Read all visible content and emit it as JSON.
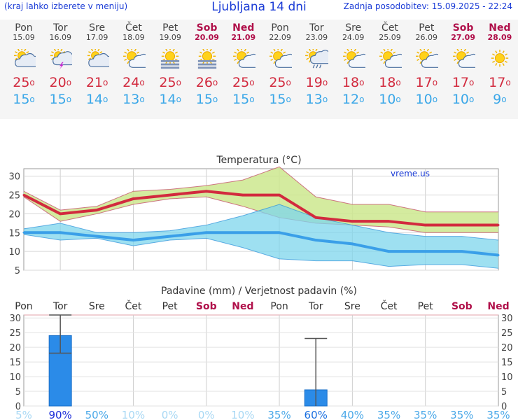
{
  "header": {
    "menu_hint": "(kraj lahko izberete v meniju)",
    "title": "Ljubljana 14 dni",
    "updated": "Zadnja posodobitev: 15.09.2025 - 22:24"
  },
  "colors": {
    "max": "#d22a3e",
    "min": "#3aa7e8",
    "weekend": "#b0104a",
    "bar": "#2b8be8"
  },
  "days": [
    {
      "name": "Pon",
      "date": "15.09",
      "icon": "cloudy-sun-icon",
      "tmax": "25",
      "tmin": "15",
      "weekend": false
    },
    {
      "name": "Tor",
      "date": "16.09",
      "icon": "storm-sun-icon",
      "tmax": "20",
      "tmin": "15",
      "weekend": false
    },
    {
      "name": "Sre",
      "date": "17.09",
      "icon": "cloudy-sun-icon",
      "tmax": "21",
      "tmin": "14",
      "weekend": false
    },
    {
      "name": "Čet",
      "date": "18.09",
      "icon": "sun-cloud-icon",
      "tmax": "24",
      "tmin": "13",
      "weekend": false
    },
    {
      "name": "Pet",
      "date": "19.09",
      "icon": "sun-fog-icon",
      "tmax": "25",
      "tmin": "14",
      "weekend": false
    },
    {
      "name": "Sob",
      "date": "20.09",
      "icon": "sun-fog-icon",
      "tmax": "26",
      "tmin": "15",
      "weekend": true
    },
    {
      "name": "Ned",
      "date": "21.09",
      "icon": "sun-cloud-icon",
      "tmax": "25",
      "tmin": "15",
      "weekend": true
    },
    {
      "name": "Pon",
      "date": "22.09",
      "icon": "sun-cloud-icon",
      "tmax": "25",
      "tmin": "15",
      "weekend": false
    },
    {
      "name": "Tor",
      "date": "23.09",
      "icon": "sun-rain-icon",
      "tmax": "19",
      "tmin": "13",
      "weekend": false
    },
    {
      "name": "Sre",
      "date": "24.09",
      "icon": "sun-cloud-icon",
      "tmax": "18",
      "tmin": "12",
      "weekend": false
    },
    {
      "name": "Čet",
      "date": "25.09",
      "icon": "sun-cloud-icon",
      "tmax": "18",
      "tmin": "10",
      "weekend": false
    },
    {
      "name": "Pet",
      "date": "26.09",
      "icon": "sun-cloud-icon",
      "tmax": "17",
      "tmin": "10",
      "weekend": false
    },
    {
      "name": "Sob",
      "date": "27.09",
      "icon": "sun-cloud-icon",
      "tmax": "17",
      "tmin": "10",
      "weekend": true
    },
    {
      "name": "Ned",
      "date": "28.09",
      "icon": "sun-icon",
      "tmax": "17",
      "tmin": "9",
      "weekend": true
    }
  ],
  "chart_data": [
    {
      "type": "line",
      "title": "Temperatura (°C)",
      "watermark": "vreme.us",
      "categories": [
        "Pon",
        "Tor",
        "Sre",
        "Čet",
        "Pet",
        "Sob",
        "Ned",
        "Pon",
        "Tor",
        "Sre",
        "Čet",
        "Pet",
        "Sob",
        "Ned"
      ],
      "ylim": [
        5,
        32
      ],
      "yticks": [
        5,
        10,
        15,
        20,
        25,
        30
      ],
      "grid": true,
      "series": [
        {
          "values": [
            25,
            20,
            21,
            24,
            25,
            26,
            25,
            25,
            19,
            18,
            18,
            17,
            17,
            17
          ]
        },
        {
          "values": [
            15,
            15,
            14,
            13,
            14,
            15,
            15,
            15,
            13,
            12,
            10,
            10,
            10,
            9
          ]
        }
      ],
      "bands": [
        {
          "upper": [
            26,
            21,
            22,
            26,
            26.5,
            27.5,
            29,
            32.5,
            24.5,
            22.5,
            22.5,
            20.5,
            20.5,
            20.5
          ],
          "lower": [
            24.5,
            18,
            20,
            22.5,
            24,
            24.5,
            22,
            19,
            17.5,
            17,
            16.5,
            15,
            15,
            15
          ]
        },
        {
          "upper": [
            16,
            17.5,
            15,
            15,
            15.5,
            17,
            19.5,
            22.5,
            19,
            17,
            15,
            14,
            14,
            13
          ],
          "lower": [
            14.5,
            13,
            13.5,
            11.5,
            13,
            13.5,
            11,
            8,
            7.5,
            7.5,
            6,
            6.5,
            6.5,
            5.5
          ]
        }
      ]
    },
    {
      "type": "bar",
      "title": "Padavine (mm) / Verjetnost padavin (%)",
      "categories": [
        "Pon",
        "Tor",
        "Sre",
        "Čet",
        "Pet",
        "Sob",
        "Ned",
        "Pon",
        "Tor",
        "Sre",
        "Čet",
        "Pet",
        "Sob",
        "Ned"
      ],
      "ylim": [
        0,
        31
      ],
      "yticks": [
        0,
        5,
        10,
        15,
        20,
        25,
        30
      ],
      "values": [
        0,
        24,
        0,
        0,
        0,
        0,
        0,
        0,
        5.5,
        0,
        0,
        0,
        0,
        0
      ],
      "error_high": [
        null,
        31,
        null,
        null,
        null,
        null,
        null,
        null,
        23,
        null,
        null,
        null,
        null,
        null
      ],
      "error_low": [
        null,
        18,
        null,
        null,
        null,
        null,
        null,
        null,
        0,
        null,
        null,
        null,
        null,
        null
      ],
      "probability": [
        "5%",
        "90%",
        "50%",
        "10%",
        "0%",
        "0%",
        "10%",
        "35%",
        "60%",
        "40%",
        "35%",
        "35%",
        "35%",
        "35%"
      ],
      "probability_values": [
        5,
        90,
        50,
        10,
        0,
        0,
        10,
        35,
        60,
        40,
        35,
        35,
        35,
        35
      ]
    }
  ]
}
